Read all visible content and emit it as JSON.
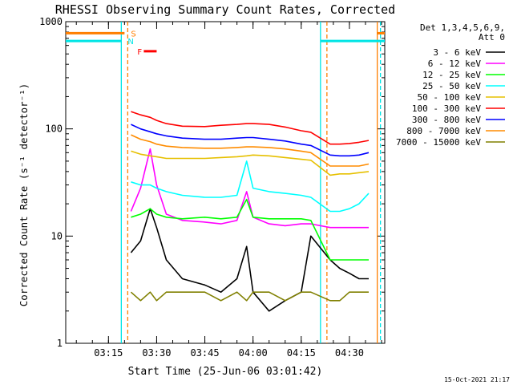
{
  "chart_data": {
    "type": "line",
    "title": "RHESSI Observing Summary Count Rates, Corrected",
    "xlabel": "Start Time (25-Jun-06 03:01:42)",
    "ylabel": "Corrected Count Rate (s⁻¹ detector⁻¹)",
    "y_scale": "log",
    "ylim": [
      1,
      1000
    ],
    "y_ticks": [
      1,
      10,
      100,
      1000
    ],
    "y_tick_labels": [
      "1",
      "10",
      "100",
      "1000"
    ],
    "xlim": [
      "03:01:42",
      "04:41:00"
    ],
    "x_ticks": [
      "03:15",
      "03:30",
      "03:45",
      "04:00",
      "04:15",
      "04:30"
    ],
    "legend_title": [
      "Det 1,3,4,5,6,9,",
      "Att 0"
    ],
    "legend_placement": "right",
    "flags": [
      {
        "label": "S",
        "color": "#ff7f00",
        "start": "03:01:42",
        "end": "03:20:00",
        "level": 780
      },
      {
        "label": "N",
        "color": "#00e5e5",
        "start": "03:01:42",
        "end": "03:19:00",
        "level": 660
      },
      {
        "label": "S",
        "color": "#ff7f00",
        "start": "04:38:40",
        "end": "04:41:00",
        "level": 780
      },
      {
        "label": "N",
        "color": "#00e5e5",
        "start": "04:21:00",
        "end": "04:41:00",
        "level": 660
      },
      {
        "label": "F",
        "color": "#ff0000",
        "start": "03:26:00",
        "end": "03:30:00",
        "level": 530
      }
    ],
    "vlines": [
      {
        "time": "03:19:00",
        "color": "#00e5e5",
        "dashed": false
      },
      {
        "time": "03:21:00",
        "color": "#ff7f00",
        "dashed": true
      },
      {
        "time": "04:21:00",
        "color": "#00e5e5",
        "dashed": false
      },
      {
        "time": "04:23:00",
        "color": "#ff7f00",
        "dashed": true
      },
      {
        "time": "04:38:40",
        "color": "#ff7f00",
        "dashed": false
      },
      {
        "time": "04:39:40",
        "color": "#00e5e5",
        "dashed": true
      }
    ],
    "x": [
      "03:22",
      "03:25",
      "03:28",
      "03:30",
      "03:33",
      "03:38",
      "03:45",
      "03:50",
      "03:55",
      "03:58",
      "04:00",
      "04:05",
      "04:10",
      "04:15",
      "04:18",
      "04:24",
      "04:27",
      "04:30",
      "04:33",
      "04:36"
    ],
    "series": [
      {
        "name": "3 - 6 keV",
        "color": "#000000",
        "values": [
          7,
          9,
          18,
          12,
          6,
          4,
          3.5,
          3,
          4,
          8,
          3,
          2,
          2.5,
          3,
          10,
          6,
          5,
          4.5,
          4,
          4
        ]
      },
      {
        "name": "6 - 12 keV",
        "color": "#ff00ff",
        "values": [
          17,
          28,
          65,
          30,
          16,
          14,
          13.5,
          13,
          14,
          26,
          15,
          13,
          12.5,
          13,
          13,
          12,
          12,
          12,
          12,
          12
        ]
      },
      {
        "name": "12 - 25 keV",
        "color": "#00ff00",
        "values": [
          15,
          16,
          18,
          16,
          15,
          14.5,
          15,
          14.5,
          15,
          22,
          15,
          14.5,
          14.5,
          14.5,
          14,
          6,
          6,
          6,
          6,
          6
        ]
      },
      {
        "name": "25 - 50 keV",
        "color": "#00ffff",
        "values": [
          32,
          30,
          30,
          28,
          26,
          24,
          23,
          23,
          24,
          50,
          28,
          26,
          25,
          24,
          23,
          17,
          17,
          18,
          20,
          25
        ]
      },
      {
        "name": "50 - 100 keV",
        "color": "#e6c000",
        "values": [
          62,
          58,
          56,
          55,
          53,
          53,
          53,
          54,
          55,
          56,
          57,
          56,
          54,
          52,
          51,
          37,
          38,
          38,
          39,
          40
        ]
      },
      {
        "name": "100 - 300 keV",
        "color": "#ff0000",
        "values": [
          145,
          135,
          128,
          120,
          112,
          106,
          105,
          108,
          110,
          112,
          112,
          110,
          104,
          96,
          93,
          72,
          72,
          73,
          75,
          78
        ]
      },
      {
        "name": "300 - 800 keV",
        "color": "#0000ff",
        "values": [
          110,
          100,
          94,
          90,
          86,
          82,
          80,
          80,
          82,
          83,
          83,
          80,
          77,
          72,
          70,
          57,
          56,
          56,
          57,
          60
        ]
      },
      {
        "name": "800 - 7000 keV",
        "color": "#ff8c00",
        "values": [
          88,
          80,
          76,
          72,
          69,
          67,
          66,
          66,
          67,
          68,
          68,
          67,
          65,
          62,
          60,
          45,
          45,
          45,
          45,
          47
        ]
      },
      {
        "name": "7000 - 15000 keV",
        "color": "#808000",
        "values": [
          3,
          2.5,
          3,
          2.5,
          3,
          3,
          3,
          2.5,
          3,
          2.5,
          3,
          3,
          2.5,
          3,
          3,
          2.5,
          2.5,
          3,
          3,
          3
        ]
      }
    ],
    "timestamp": "15-Oct-2021 21:17"
  }
}
